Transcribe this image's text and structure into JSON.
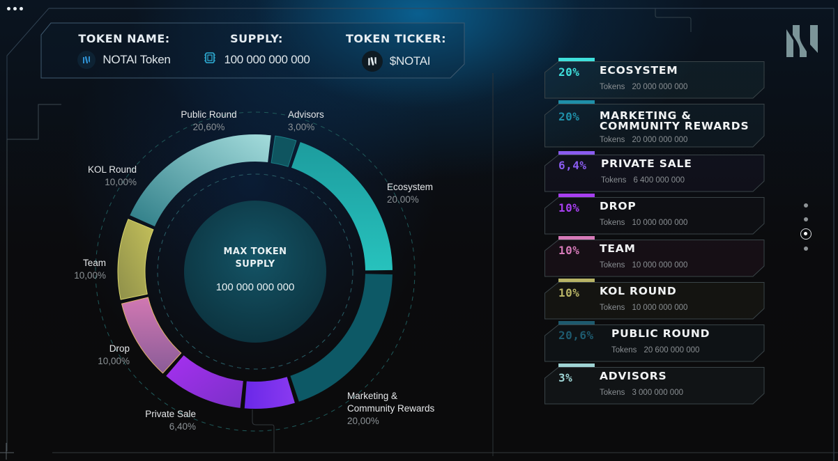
{
  "header": {
    "token_name_label": "TOKEN NAME:",
    "token_name_value": "NOTAI Token",
    "supply_label": "SUPPLY:",
    "supply_value": "100 000 000 000",
    "ticker_label": "TOKEN TICKER:",
    "ticker_value": "$NOTAI",
    "icons": {
      "token_name": "notai-logo-icon",
      "supply": "chip-icon",
      "ticker": "notai-logo-icon"
    }
  },
  "center": {
    "title_line1": "MAX TOKEN",
    "title_line2": "SUPPLY",
    "value": "100 000 000 000"
  },
  "chart_labels": {
    "public_round": {
      "name": "Public Round",
      "pct": "20,60%"
    },
    "advisors": {
      "name": "Advisors",
      "pct": "3,00%"
    },
    "ecosystem": {
      "name": "Ecosystem",
      "pct": "20.00%"
    },
    "marketing": {
      "name_line1": "Marketing &",
      "name_line2": "Community Rewards",
      "pct": "20,00%"
    },
    "private_sale": {
      "name": "Private Sale",
      "pct": "6,40%"
    },
    "drop": {
      "name": "Drop",
      "pct": "10,00%"
    },
    "team": {
      "name": "Team",
      "pct": "10,00%"
    },
    "kol_round": {
      "name": "KOL Round",
      "pct": "10,00%"
    }
  },
  "allocations": [
    {
      "pct": "20%",
      "title_line1": "ECOSYSTEM",
      "title_line2": "",
      "tokens_label": "Tokens",
      "tokens": "20 000 000 000",
      "color": "#3fe0dc"
    },
    {
      "pct": "20%",
      "title_line1": "MARKETING &",
      "title_line2": "COMMUNITY REWARDS",
      "tokens_label": "Tokens",
      "tokens": "20 000 000 000",
      "color": "#1f8fa8"
    },
    {
      "pct": "6,4%",
      "title_line1": "PRIVATE SALE",
      "title_line2": "",
      "tokens_label": "Tokens",
      "tokens": "6 400 000 000",
      "color": "#8a5cf0"
    },
    {
      "pct": "10%",
      "title_line1": "DROP",
      "title_line2": "",
      "tokens_label": "Tokens",
      "tokens": "10 000 000 000",
      "color": "#a73ff0"
    },
    {
      "pct": "10%",
      "title_line1": "TEAM",
      "title_line2": "",
      "tokens_label": "Tokens",
      "tokens": "10 000 000 000",
      "color": "#d57ab8"
    },
    {
      "pct": "10%",
      "title_line1": "KOL ROUND",
      "title_line2": "",
      "tokens_label": "Tokens",
      "tokens": "10 000 000 000",
      "color": "#b8b466"
    },
    {
      "pct": "20,6%",
      "title_line1": "PUBLIC ROUND",
      "title_line2": "",
      "tokens_label": "Tokens",
      "tokens": "20 600 000 000",
      "color": "#1e5a6e"
    },
    {
      "pct": "3%",
      "title_line1": "ADVISORS",
      "title_line2": "",
      "tokens_label": "Tokens",
      "tokens": "3 000 000 000",
      "color": "#9fd4d4"
    }
  ],
  "pager": {
    "count": 4,
    "active_index": 2
  },
  "chart_data": {
    "type": "pie",
    "variant": "donut",
    "title": "MAX TOKEN SUPPLY",
    "center_value": "100 000 000 000",
    "categories": [
      "Advisors",
      "Ecosystem",
      "Marketing & Community Rewards",
      "Private Sale",
      "Drop",
      "Team",
      "KOL Round",
      "Public Round"
    ],
    "values": [
      3.0,
      20.0,
      20.0,
      6.4,
      10.0,
      10.0,
      10.0,
      20.6
    ],
    "tokens": [
      3000000000,
      20000000000,
      20000000000,
      6400000000,
      10000000000,
      10000000000,
      10000000000,
      20600000000
    ],
    "colors": [
      "#0f5560",
      "#1fb3b0",
      "#0d5966",
      "#7a2ff0",
      "#9b33e8",
      "#c57ab0",
      "#b3b05a",
      "#7fc6c6"
    ],
    "unit": "%"
  }
}
